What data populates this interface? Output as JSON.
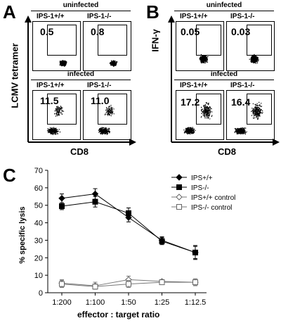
{
  "panel_A": {
    "letter": "A",
    "y_axis_label": "LCMV tetramer",
    "x_axis_label": "CD8",
    "uninfected_label": "uninfected",
    "infected_label": "infected",
    "genotypes": [
      "IPS-1+/+",
      "IPS-1-/-"
    ],
    "uninfected_values": [
      "0.5",
      "0.8"
    ],
    "infected_values": [
      "11.5",
      "11.0"
    ]
  },
  "panel_B": {
    "letter": "B",
    "y_axis_label": "IFN-γ",
    "x_axis_label": "CD8",
    "uninfected_label": "uninfected",
    "infected_label": "infected",
    "genotypes": [
      "IPS-1+/+",
      "IPS-1-/-"
    ],
    "uninfected_values": [
      "0.05",
      "0.03"
    ],
    "infected_values": [
      "17.2",
      "16.4"
    ]
  },
  "panel_C": {
    "letter": "C"
  },
  "chart_data": {
    "type": "line",
    "categories": [
      "1:200",
      "1:100",
      "1:50",
      "1:25",
      "1:12.5"
    ],
    "xlabel": "effector : target ratio",
    "ylabel": "% specific lysis",
    "ylim": [
      0,
      70
    ],
    "yticks": [
      0,
      10,
      20,
      30,
      40,
      50,
      60,
      70
    ],
    "legend_position": "top-right",
    "series": [
      {
        "name": "IPS+/+",
        "marker": "diamond-filled",
        "values": [
          54,
          56.5,
          43,
          30,
          23
        ],
        "errors": [
          2.5,
          3,
          2.5,
          2,
          3.5
        ]
      },
      {
        "name": "IPS-/-",
        "marker": "square-filled",
        "values": [
          49.5,
          52,
          45.5,
          29.5,
          23
        ],
        "errors": [
          2,
          3,
          3,
          2,
          4
        ]
      },
      {
        "name": "IPS+/+ control",
        "marker": "diamond-open",
        "values": [
          5.5,
          4,
          7.5,
          6.5,
          6
        ],
        "errors": [
          2,
          2,
          2,
          1,
          1.5
        ]
      },
      {
        "name": "IPS-/- control",
        "marker": "square-open",
        "values": [
          5,
          3.5,
          5,
          6,
          6
        ],
        "errors": [
          2,
          1.5,
          2,
          1,
          2
        ]
      }
    ]
  }
}
